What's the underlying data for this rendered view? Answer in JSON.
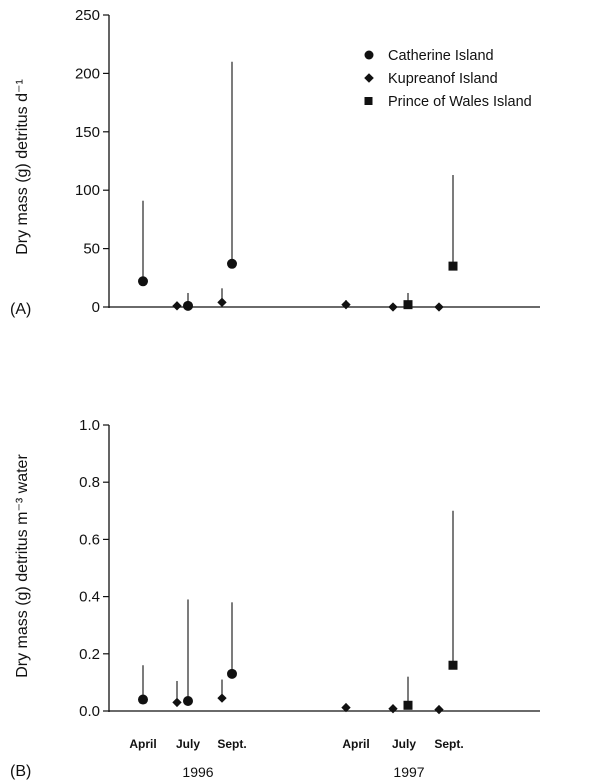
{
  "figure": {
    "year_labels": [
      "1996",
      "1997"
    ]
  },
  "legend": [
    {
      "name": "Catherine Island",
      "marker": "circle"
    },
    {
      "name": "Kupreanof Island",
      "marker": "diamond"
    },
    {
      "name": "Prince of Wales Island",
      "marker": "square"
    }
  ],
  "chart_data": [
    {
      "type": "scatter",
      "panel_label": "(A)",
      "ylabel": "Dry mass (g) detritus d⁻¹",
      "ylim": [
        0,
        250
      ],
      "yticks": [
        0,
        50,
        100,
        150,
        200,
        250
      ],
      "ytick_labels": [
        "0",
        "50",
        "100",
        "150",
        "200",
        "250"
      ],
      "x_groups": [
        {
          "year": "1996",
          "months": [
            "April",
            "July",
            "Sept."
          ]
        },
        {
          "year": "1997",
          "months": [
            "April",
            "July",
            "Sept."
          ]
        }
      ],
      "error_bars": "one-sided upper",
      "series": [
        {
          "name": "Catherine Island",
          "marker": "circle",
          "points": [
            {
              "year": "1996",
              "month": "April",
              "y": 22,
              "upper": 91
            },
            {
              "year": "1996",
              "month": "July",
              "y": 1,
              "upper": 12
            },
            {
              "year": "1996",
              "month": "Sept.",
              "y": 37,
              "upper": 210
            }
          ]
        },
        {
          "name": "Kupreanof Island",
          "marker": "diamond",
          "points": [
            {
              "year": "1996",
              "month": "July",
              "y": 1,
              "upper": 3
            },
            {
              "year": "1996",
              "month": "Sept.",
              "y": 4,
              "upper": 16
            },
            {
              "year": "1997",
              "month": "April",
              "y": 2,
              "upper": 6
            },
            {
              "year": "1997",
              "month": "July",
              "y": 0,
              "upper": 2
            },
            {
              "year": "1997",
              "month": "Sept.",
              "y": 0,
              "upper": 2
            }
          ]
        },
        {
          "name": "Prince of Wales Island",
          "marker": "square",
          "points": [
            {
              "year": "1997",
              "month": "July",
              "y": 2,
              "upper": 12
            },
            {
              "year": "1997",
              "month": "Sept.",
              "y": 35,
              "upper": 113
            }
          ]
        }
      ]
    },
    {
      "type": "scatter",
      "panel_label": "(B)",
      "ylabel": "Dry mass (g) detritus m⁻³ water",
      "ylim": [
        0,
        1.0
      ],
      "yticks": [
        0,
        0.2,
        0.4,
        0.6,
        0.8,
        1.0
      ],
      "ytick_labels": [
        "0.0",
        "0.2",
        "0.4",
        "0.6",
        "0.8",
        "1.0"
      ],
      "x_groups": [
        {
          "year": "1996",
          "months": [
            "April",
            "July",
            "Sept."
          ]
        },
        {
          "year": "1997",
          "months": [
            "April",
            "July",
            "Sept."
          ]
        }
      ],
      "error_bars": "one-sided upper",
      "series": [
        {
          "name": "Catherine Island",
          "marker": "circle",
          "points": [
            {
              "year": "1996",
              "month": "April",
              "y": 0.04,
              "upper": 0.16
            },
            {
              "year": "1996",
              "month": "July",
              "y": 0.035,
              "upper": 0.39
            },
            {
              "year": "1996",
              "month": "Sept.",
              "y": 0.13,
              "upper": 0.38
            }
          ]
        },
        {
          "name": "Kupreanof Island",
          "marker": "diamond",
          "points": [
            {
              "year": "1996",
              "month": "July",
              "y": 0.03,
              "upper": 0.105
            },
            {
              "year": "1996",
              "month": "Sept.",
              "y": 0.045,
              "upper": 0.11
            },
            {
              "year": "1997",
              "month": "April",
              "y": 0.012,
              "upper": 0.02
            },
            {
              "year": "1997",
              "month": "July",
              "y": 0.008,
              "upper": 0.02
            },
            {
              "year": "1997",
              "month": "Sept.",
              "y": 0.005,
              "upper": 0.01
            }
          ]
        },
        {
          "name": "Prince of Wales Island",
          "marker": "square",
          "points": [
            {
              "year": "1997",
              "month": "July",
              "y": 0.02,
              "upper": 0.12
            },
            {
              "year": "1997",
              "month": "Sept.",
              "y": 0.16,
              "upper": 0.7
            }
          ]
        }
      ]
    }
  ]
}
